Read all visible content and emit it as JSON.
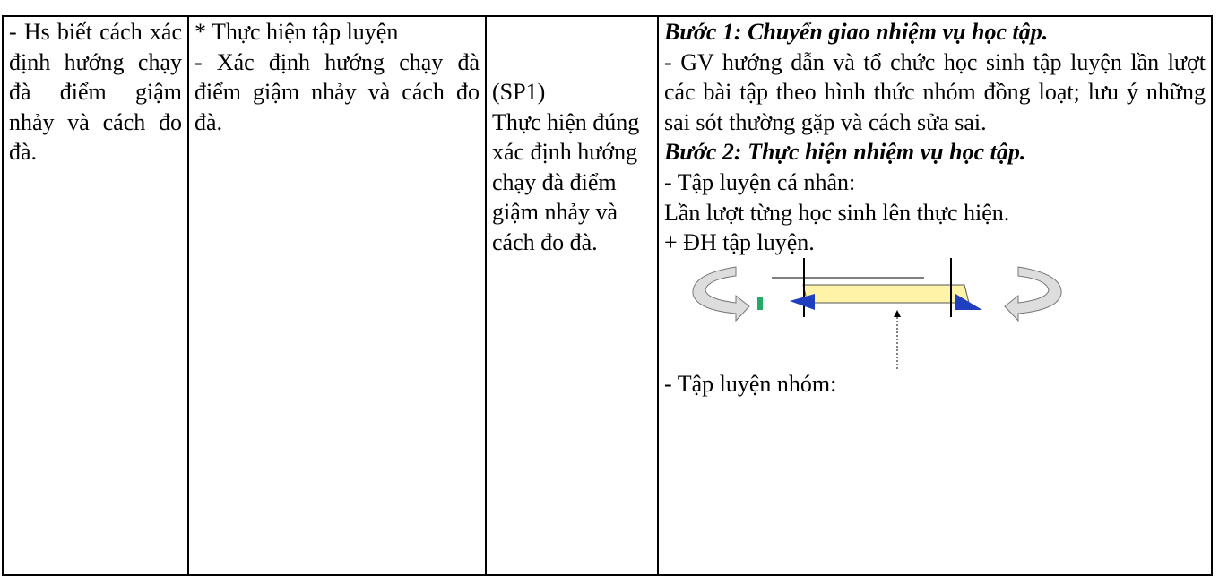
{
  "table": {
    "rows": [
      [
        {
          "text": "- Hs biết cách xác định hướng chạy đà điểm giậm nhảy và cách đo đà."
        },
        {
          "lines": [
            "* Thực hiện tập luyện",
            "- Xác định hướng chạy đà điểm giậm nhảy và cách đo đà."
          ]
        },
        {
          "lines": [
            "(SP1)",
            "Thực hiện đúng xác định hướng chạy đà điểm giậm nhảy và cách đo đà."
          ]
        },
        {
          "step1_title": "Bước 1: Chuyển giao nhiệm vụ học tập.",
          "step1_text": "- GV hướng dẫn và tổ chức học sinh tập luyện lần lượt các bài tập theo hình thức nhóm đồng loạt; lưu ý những sai sót thường gặp và cách sửa sai.",
          "step2_title": "Bước 2: Thực hiện nhiệm vụ học tập.",
          "step2_lines": [
            "- Tập luyện cá nhân:",
            "Lần lượt từng học sinh lên thực hiện.",
            "+ ĐH tập luyện."
          ],
          "after_figure": "- Tập luyện nhóm:"
        }
      ]
    ]
  }
}
